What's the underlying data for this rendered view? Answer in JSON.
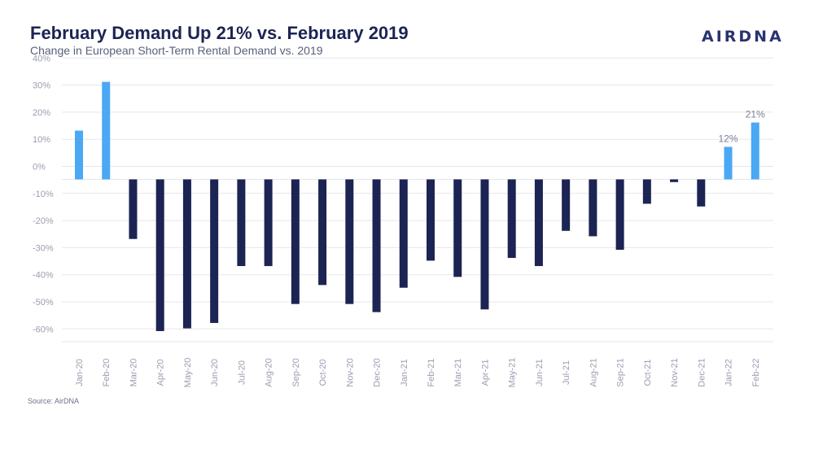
{
  "header": {
    "title": "February Demand Up 21% vs. February 2019",
    "subtitle": "Change in European Short-Term Rental Demand vs. 2019",
    "logo": "AIRDNA"
  },
  "footer": {
    "source": "Source: AirDNA"
  },
  "colors": {
    "positive": "#4aa8f5",
    "negative": "#1c2453",
    "grid": "#e6e7ee"
  },
  "chart_data": {
    "type": "bar",
    "title": "February Demand Up 21% vs. February 2019",
    "subtitle": "Change in European Short-Term Rental Demand vs. 2019",
    "xlabel": "",
    "ylabel": "",
    "ylim": [
      -60,
      40
    ],
    "grid": true,
    "y_ticks": [
      "40%",
      "30%",
      "20%",
      "10%",
      "0%",
      "-10%",
      "-20%",
      "-30%",
      "-40%",
      "-50%",
      "-60%"
    ],
    "categories": [
      "Jan-20",
      "Feb-20",
      "Mar-20",
      "Apr-20",
      "May-20",
      "Jun-20",
      "Jul-20",
      "Aug-20",
      "Sep-20",
      "Oct-20",
      "Nov-20",
      "Dec-20",
      "Jan-21",
      "Feb-21",
      "Mar-21",
      "Apr-21",
      "May-21",
      "Jun-21",
      "Jul-21",
      "Aug-21",
      "Sep-21",
      "Oct-21",
      "Nov-21",
      "Dec-21",
      "Jan-22",
      "Feb-22"
    ],
    "values": [
      18,
      36,
      -22,
      -56,
      -55,
      -53,
      -32,
      -32,
      -46,
      -39,
      -46,
      -49,
      -40,
      -30,
      -36,
      -48,
      -29,
      -32,
      -19,
      -21,
      -26,
      -9,
      -1,
      -10,
      12,
      21
    ],
    "data_labels": [
      {
        "category": "Jan-22",
        "text": "12%"
      },
      {
        "category": "Feb-22",
        "text": "21%"
      }
    ]
  }
}
